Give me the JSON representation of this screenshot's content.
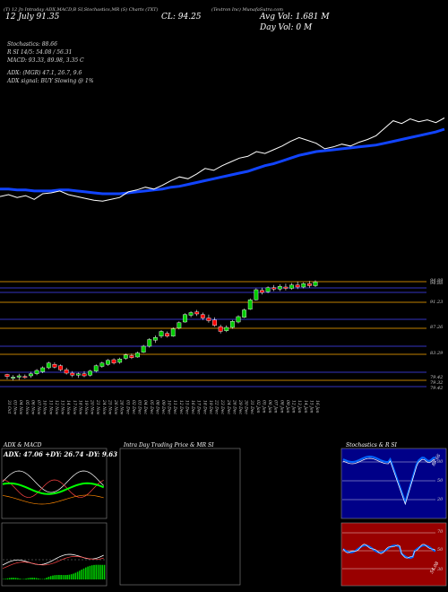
{
  "header": {
    "top_small": "(T) 12 Jn Intraday ADX,MACD,B SI,Stochastics,MR (S) Charts (TXT)",
    "ohlc_small": "(Textron Inc) MunafaSutra.com",
    "date_label": "12 July 91.35",
    "close_label": "CL: 94.25",
    "avg_vol": "Avg Vol: 1.681 M",
    "day_vol": "Day Vol: 0  M"
  },
  "indicators": {
    "stochastics": "Stochastics: 88.66",
    "rsi": "R       SI 14/5: 54.08 / 56.31",
    "macd": "MACD: 93.33, 89.98, 3.35 C",
    "adx": "ADX:                      (MGR) 47.1, 26.7, 9.6",
    "adx_signal": "ADX  signal:                      BUY Slowing @ 1%"
  },
  "price_levels": [
    "94.89",
    "94.88",
    "91.23",
    "87.26",
    "83.29",
    "79.42",
    "79.32",
    "79.42"
  ],
  "x_dates": [
    "31 Oct",
    "03 Nov",
    "04 Nov",
    "05 Nov",
    "06 Nov",
    "07 Nov",
    "10 Nov",
    "11 Nov",
    "12 Nov",
    "13 Nov",
    "14 Nov",
    "17 Nov",
    "18 Nov",
    "19 Nov",
    "20 Nov",
    "21 Nov",
    "24 Nov",
    "25 Nov",
    "26 Nov",
    "28 Nov",
    "01 Dec",
    "02 Dec",
    "03 Dec",
    "04 Dec",
    "05 Dec",
    "08 Dec",
    "09 Dec",
    "10 Dec",
    "11 Dec",
    "12 Dec",
    "15 Dec",
    "16 Dec",
    "17 Dec",
    "18 Dec",
    "19 Dec",
    "22 Dec",
    "23 Dec",
    "24 Dec",
    "26 Dec",
    "29 Dec",
    "30 Dec",
    "31 Dec",
    "02 Jan",
    "05 Jan",
    "06 Jan",
    "07 Jan",
    "08 Jan",
    "09 Jan",
    "12 Jan",
    "13 Jan",
    "14 Jan",
    "15 Jan",
    "16 Jan"
  ],
  "panels": {
    "adx_title": "ADX  & MACD",
    "adx_values": "ADX: 47.06  +DY: 26.74  -DY: 9.63",
    "intraday_title": "Intra  Day Trading Price  & MR                    SI",
    "stoch_title": "Stochastics & R          SI",
    "stoch_levels": [
      "80",
      "50",
      "20"
    ],
    "rsi_levels": [
      "70",
      "50",
      "30"
    ],
    "stoch_value": "88.66",
    "rsi_value": "54.08"
  },
  "colors": {
    "up": "#00cc00",
    "down": "#ff0000",
    "ma": "#1144ff",
    "price": "#ffffff",
    "level": "#ffaa00",
    "rsi_bg": "#990000",
    "stoch_bg": "#000088"
  },
  "chart_data": {
    "type": "candlestick",
    "ylim": [
      77.5,
      95.5
    ],
    "candles": [
      [
        80.5,
        80.6,
        79.8,
        80.2
      ],
      [
        80.0,
        80.4,
        79.6,
        80.1
      ],
      [
        80.1,
        80.6,
        79.7,
        80.3
      ],
      [
        80.2,
        80.5,
        79.9,
        80.1
      ],
      [
        80.3,
        80.9,
        80.0,
        80.6
      ],
      [
        80.6,
        81.3,
        80.4,
        81.1
      ],
      [
        80.9,
        81.7,
        80.7,
        81.5
      ],
      [
        81.5,
        82.4,
        81.3,
        82.2
      ],
      [
        82.0,
        82.3,
        81.4,
        81.6
      ],
      [
        81.8,
        82.0,
        81.0,
        81.2
      ],
      [
        81.2,
        81.5,
        80.5,
        80.7
      ],
      [
        80.7,
        81.0,
        80.1,
        80.4
      ],
      [
        80.4,
        80.8,
        80.0,
        80.6
      ],
      [
        80.6,
        81.0,
        80.1,
        80.3
      ],
      [
        80.4,
        81.2,
        80.2,
        81.0
      ],
      [
        81.0,
        82.0,
        80.8,
        81.8
      ],
      [
        81.7,
        82.4,
        81.5,
        82.2
      ],
      [
        82.0,
        82.8,
        81.8,
        82.6
      ],
      [
        82.7,
        82.9,
        82.0,
        82.2
      ],
      [
        82.3,
        83.0,
        82.1,
        82.8
      ],
      [
        82.9,
        83.6,
        82.7,
        83.4
      ],
      [
        83.3,
        83.6,
        82.8,
        83.0
      ],
      [
        83.1,
        83.9,
        83.0,
        83.7
      ],
      [
        83.8,
        84.9,
        83.7,
        84.7
      ],
      [
        84.7,
        85.9,
        84.5,
        85.7
      ],
      [
        85.6,
        86.3,
        85.2,
        86.0
      ],
      [
        86.2,
        87.1,
        85.9,
        86.9
      ],
      [
        86.6,
        86.9,
        86.0,
        86.2
      ],
      [
        86.2,
        87.5,
        86.1,
        87.3
      ],
      [
        87.4,
        88.4,
        87.2,
        88.2
      ],
      [
        88.3,
        89.6,
        88.2,
        89.4
      ],
      [
        89.3,
        89.9,
        89.0,
        89.7
      ],
      [
        89.8,
        90.1,
        89.2,
        89.5
      ],
      [
        89.4,
        89.7,
        88.6,
        88.9
      ],
      [
        88.9,
        89.4,
        88.2,
        88.5
      ],
      [
        88.6,
        89.0,
        87.6,
        87.8
      ],
      [
        87.6,
        87.9,
        86.6,
        86.9
      ],
      [
        87.0,
        87.8,
        86.8,
        87.5
      ],
      [
        87.5,
        88.6,
        87.3,
        88.4
      ],
      [
        88.3,
        89.3,
        88.1,
        89.1
      ],
      [
        89.0,
        90.3,
        88.9,
        90.1
      ],
      [
        90.2,
        91.8,
        90.1,
        91.6
      ],
      [
        91.6,
        93.3,
        91.5,
        93.1
      ],
      [
        93.0,
        93.4,
        92.4,
        92.7
      ],
      [
        92.8,
        93.6,
        92.6,
        93.4
      ],
      [
        93.4,
        93.8,
        92.9,
        93.2
      ],
      [
        93.2,
        93.9,
        92.9,
        93.6
      ],
      [
        93.5,
        94.0,
        93.0,
        93.3
      ],
      [
        93.3,
        94.1,
        93.1,
        93.8
      ],
      [
        93.8,
        94.3,
        93.2,
        93.5
      ],
      [
        93.5,
        94.2,
        93.3,
        94.0
      ],
      [
        94.0,
        94.4,
        93.4,
        93.7
      ],
      [
        93.7,
        94.5,
        93.5,
        94.25
      ]
    ],
    "price_line": [
      85.5,
      85.7,
      85.4,
      85.6,
      85.2,
      85.8,
      85.9,
      86.1,
      85.7,
      85.5,
      85.3,
      85.1,
      85.0,
      85.2,
      85.4,
      86.0,
      86.2,
      86.5,
      86.3,
      86.7,
      87.2,
      87.6,
      87.4,
      87.9,
      88.5,
      88.3,
      88.8,
      89.2,
      89.6,
      89.8,
      90.3,
      90.1,
      90.5,
      90.9,
      91.4,
      91.8,
      91.5,
      91.2,
      90.6,
      90.8,
      91.1,
      90.9,
      91.3,
      91.6,
      92.0,
      92.8,
      93.6,
      93.3,
      93.8,
      93.5,
      93.7,
      93.4,
      93.9
    ],
    "ma_line": [
      86.3,
      86.3,
      86.2,
      86.2,
      86.1,
      86.1,
      86.1,
      86.2,
      86.2,
      86.1,
      86.0,
      85.9,
      85.8,
      85.8,
      85.8,
      85.9,
      86.0,
      86.1,
      86.2,
      86.3,
      86.5,
      86.6,
      86.8,
      87.0,
      87.2,
      87.4,
      87.6,
      87.8,
      88.0,
      88.2,
      88.5,
      88.8,
      89.0,
      89.3,
      89.6,
      89.9,
      90.1,
      90.3,
      90.4,
      90.5,
      90.6,
      90.7,
      90.8,
      90.9,
      91.0,
      91.2,
      91.4,
      91.6,
      91.8,
      92.0,
      92.2,
      92.4,
      92.7
    ],
    "price_line_ylim": [
      83.5,
      95.0
    ]
  }
}
